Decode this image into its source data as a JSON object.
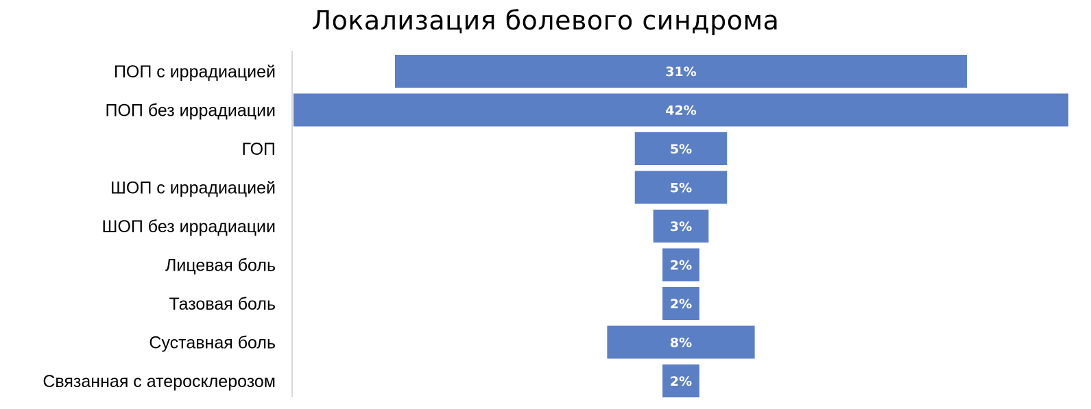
{
  "chart_data": {
    "type": "bar",
    "orientation": "horizontal",
    "layout": "funnel",
    "title": "Локализация болевого синдрома",
    "categories": [
      "ПОП с иррадиацией",
      "ПОП без иррадиации",
      "ГОП",
      "ШОП с иррадиацией",
      "ШОП без иррадиации",
      "Лицевая боль",
      "Тазовая боль",
      "Суставная боль",
      "Связанная с атеросклерозом"
    ],
    "values": [
      31,
      42,
      5,
      5,
      3,
      2,
      2,
      8,
      2
    ],
    "data_labels": [
      "31%",
      "42%",
      "5%",
      "5%",
      "3%",
      "2%",
      "2%",
      "8%",
      "2%"
    ],
    "value_unit": "%",
    "bar_color": "#5B7FC4",
    "label_color": "#FFFFFF",
    "axis_color": "#D9D9D9",
    "grid": false,
    "legend": "none"
  }
}
